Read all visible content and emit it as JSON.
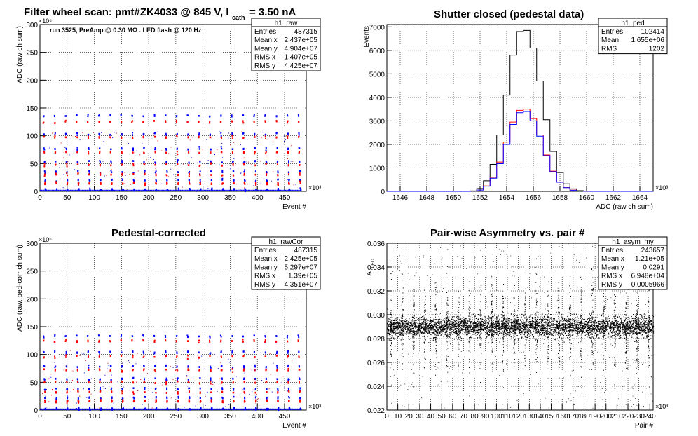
{
  "chart_data": [
    {
      "type": "scatter",
      "title": "Filter wheel scan: pmt#ZK4033 @   845 V, I",
      "title_sub": "cath",
      "title_tail": "= 3.50 nA",
      "annotation": "run 3525, PreAmp @ 0.30 MΩ . LED flash @  120 Hz",
      "xlabel": "Event #",
      "ylabel": "ADC (raw ch sum)",
      "x_exponent": "×10³",
      "y_exponent": "×10⁶",
      "xlim": [
        0,
        490
      ],
      "ylim": [
        0,
        300
      ],
      "xticks": [
        0,
        50,
        100,
        150,
        200,
        250,
        300,
        350,
        400,
        450
      ],
      "yticks": [
        0,
        50,
        100,
        150,
        200,
        250,
        300
      ],
      "grid": true,
      "stats": {
        "name": "h1_raw",
        "rows": [
          [
            "Entries",
            "487315"
          ],
          [
            "Mean x",
            "2.437e+05"
          ],
          [
            "Mean y",
            "4.904e+07"
          ],
          [
            "RMS x",
            "1.407e+05"
          ],
          [
            "RMS y",
            "4.425e+07"
          ]
        ]
      },
      "series": [
        {
          "color": "#0000ff",
          "period_x": 20.4,
          "levels_y": [
            136,
            103,
            77,
            53,
            35,
            20,
            3
          ]
        },
        {
          "color": "#ff0000",
          "period_x": 20.4,
          "levels_y": [
            125,
            97,
            70,
            48,
            30,
            14
          ]
        }
      ]
    },
    {
      "type": "line",
      "title": "Shutter closed (pedestal data)",
      "xlabel": "ADC (raw ch sum)",
      "ylabel": "Events",
      "x_exponent": "×10³",
      "xlim": [
        1645,
        1665
      ],
      "ylim": [
        0,
        7100
      ],
      "xticks": [
        1646,
        1648,
        1650,
        1652,
        1654,
        1656,
        1658,
        1660,
        1662,
        1664
      ],
      "yticks": [
        0,
        1000,
        2000,
        3000,
        4000,
        5000,
        6000,
        7000
      ],
      "grid": true,
      "stats": {
        "name": "h1_ped",
        "rows": [
          [
            "Entries",
            "102414"
          ],
          [
            "Mean",
            "1.655e+06"
          ],
          [
            "RMS",
            "1202"
          ]
        ]
      },
      "x": [
        1651.5,
        1652,
        1652.5,
        1653,
        1653.5,
        1654,
        1654.5,
        1655,
        1655.5,
        1656,
        1656.5,
        1657,
        1657.5,
        1658,
        1658.5,
        1659,
        1659.5,
        1660
      ],
      "series": [
        {
          "color": "#000000",
          "values": [
            20,
            120,
            450,
            1150,
            2400,
            4100,
            5800,
            6800,
            6850,
            6100,
            4700,
            3050,
            1700,
            800,
            320,
            110,
            30,
            8
          ]
        },
        {
          "color": "#ff0000",
          "values": [
            10,
            60,
            230,
            600,
            1250,
            2100,
            2950,
            3450,
            3500,
            3100,
            2400,
            1550,
            860,
            400,
            160,
            55,
            15,
            4
          ]
        },
        {
          "color": "#0000ff",
          "values": [
            10,
            55,
            220,
            560,
            1180,
            2000,
            2850,
            3350,
            3400,
            3000,
            2350,
            1520,
            840,
            390,
            155,
            50,
            14,
            4
          ]
        }
      ]
    },
    {
      "type": "scatter",
      "title": "Pedestal-corrected",
      "xlabel": "Event #",
      "ylabel": "ADC (raw, ped-corr ch sum)",
      "x_exponent": "×10³",
      "y_exponent": "×10⁶",
      "xlim": [
        0,
        490
      ],
      "ylim": [
        0,
        300
      ],
      "xticks": [
        0,
        50,
        100,
        150,
        200,
        250,
        300,
        350,
        400,
        450
      ],
      "yticks": [
        0,
        50,
        100,
        150,
        200,
        250,
        300
      ],
      "grid": true,
      "stats": {
        "name": "h1_rawCor",
        "rows": [
          [
            "Entries",
            "487315"
          ],
          [
            "Mean x",
            "2.425e+05"
          ],
          [
            "Mean y",
            "5.297e+07"
          ],
          [
            "RMS x",
            "1.39e+05"
          ],
          [
            "RMS y",
            "4.351e+07"
          ]
        ]
      },
      "series": [
        {
          "color": "#0000ff",
          "period_x": 20.4,
          "levels_y": [
            133,
            104,
            78,
            56,
            38,
            22,
            2
          ]
        },
        {
          "color": "#ff0000",
          "period_x": 20.4,
          "levels_y": [
            124,
            96,
            72,
            50,
            32,
            16
          ]
        }
      ]
    },
    {
      "type": "scatter",
      "title": "Pair-wise Asymmetry vs. pair #",
      "xlabel": "Pair #",
      "ylabel": "A",
      "ylabel_sub": "LED",
      "x_exponent": "×10³",
      "xlim": [
        0,
        243
      ],
      "ylim": [
        0.022,
        0.036
      ],
      "xticks": [
        0,
        10,
        20,
        30,
        40,
        50,
        60,
        70,
        80,
        90,
        100,
        110,
        120,
        130,
        140,
        150,
        160,
        170,
        180,
        190,
        200,
        210,
        220,
        230,
        240
      ],
      "yticks": [
        0.022,
        0.024,
        0.026,
        0.028,
        0.03,
        0.032,
        0.034,
        0.036
      ],
      "grid": true,
      "stats": {
        "name": "h1_asym_my",
        "rows": [
          [
            "Entries",
            "243657"
          ],
          [
            "Mean x",
            "1.21e+05"
          ],
          [
            "Mean y",
            "0.0291"
          ],
          [
            "RMS x",
            "6.948e+04"
          ],
          [
            "RMS y",
            "0.0005966"
          ]
        ]
      },
      "band_center": 0.029,
      "band_halfwidth": 0.0007,
      "spike_period_x": 10.2
    }
  ]
}
